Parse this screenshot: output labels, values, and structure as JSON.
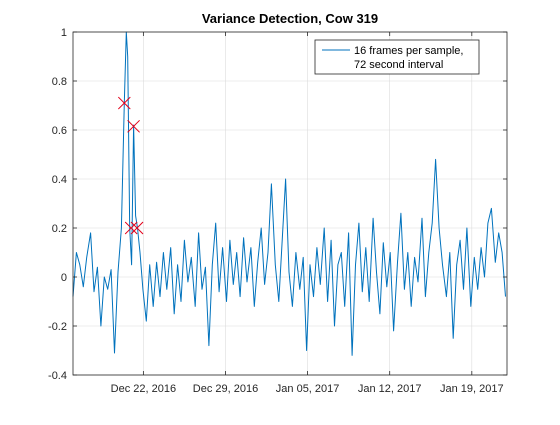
{
  "chart_data": {
    "type": "line",
    "title": "Variance Detection, Cow 319",
    "xlabel": "",
    "ylabel": "",
    "xlim": [
      "2016-12-16",
      "2017-01-22"
    ],
    "ylim": [
      -0.4,
      1
    ],
    "grid": true,
    "legend_position": "top-right",
    "x_ticks": [
      "Dec 22, 2016",
      "Dec 29, 2016",
      "Jan 05, 2017",
      "Jan 12, 2017",
      "Jan 19, 2017"
    ],
    "x_tick_dates": [
      "2016-12-22",
      "2016-12-29",
      "2017-01-05",
      "2017-01-12",
      "2017-01-19"
    ],
    "y_ticks": [
      -0.4,
      -0.2,
      0,
      0.2,
      0.4,
      0.6,
      0.8,
      1
    ],
    "y_tick_labels": [
      "-0.4",
      "-0.2",
      "0",
      "0.2",
      "0.4",
      "0.6",
      "0.8",
      "1"
    ],
    "series": [
      {
        "name": "16 frames per sample,\n72  second interval",
        "legend_lines": [
          "16 frames per sample,",
          "72  second interval"
        ],
        "color": "#0072BD",
        "points": [
          [
            "2016-12-16T00:00",
            -0.08
          ],
          [
            "2016-12-16T07:00",
            0.1
          ],
          [
            "2016-12-16T14:00",
            0.05
          ],
          [
            "2016-12-16T21:00",
            -0.04
          ],
          [
            "2016-12-17T04:00",
            0.08
          ],
          [
            "2016-12-17T12:00",
            0.18
          ],
          [
            "2016-12-17T19:00",
            -0.06
          ],
          [
            "2016-12-18T02:00",
            0.04
          ],
          [
            "2016-12-18T09:00",
            -0.2
          ],
          [
            "2016-12-18T16:00",
            0.0
          ],
          [
            "2016-12-18T23:00",
            -0.05
          ],
          [
            "2016-12-19T06:00",
            0.03
          ],
          [
            "2016-12-19T13:00",
            -0.31
          ],
          [
            "2016-12-19T20:00",
            0.02
          ],
          [
            "2016-12-20T03:00",
            0.2
          ],
          [
            "2016-12-20T09:00",
            0.71
          ],
          [
            "2016-12-20T13:00",
            1.0
          ],
          [
            "2016-12-20T16:00",
            0.9
          ],
          [
            "2016-12-20T20:00",
            0.2
          ],
          [
            "2016-12-21T00:00",
            0.05
          ],
          [
            "2016-12-21T04:00",
            0.62
          ],
          [
            "2016-12-21T08:00",
            0.25
          ],
          [
            "2016-12-21T12:00",
            0.2
          ],
          [
            "2016-12-21T17:00",
            0.1
          ],
          [
            "2016-12-21T23:00",
            -0.05
          ],
          [
            "2016-12-22T06:00",
            -0.18
          ],
          [
            "2016-12-22T13:00",
            0.05
          ],
          [
            "2016-12-22T20:00",
            -0.12
          ],
          [
            "2016-12-23T03:00",
            0.06
          ],
          [
            "2016-12-23T10:00",
            -0.08
          ],
          [
            "2016-12-23T17:00",
            0.1
          ],
          [
            "2016-12-24T00:00",
            -0.05
          ],
          [
            "2016-12-24T08:00",
            0.12
          ],
          [
            "2016-12-24T15:00",
            -0.15
          ],
          [
            "2016-12-24T22:00",
            0.05
          ],
          [
            "2016-12-25T05:00",
            -0.1
          ],
          [
            "2016-12-25T12:00",
            0.15
          ],
          [
            "2016-12-25T19:00",
            -0.02
          ],
          [
            "2016-12-26T02:00",
            0.08
          ],
          [
            "2016-12-26T10:00",
            -0.12
          ],
          [
            "2016-12-26T17:00",
            0.18
          ],
          [
            "2016-12-27T00:00",
            -0.05
          ],
          [
            "2016-12-27T07:00",
            0.04
          ],
          [
            "2016-12-27T14:00",
            -0.28
          ],
          [
            "2016-12-27T21:00",
            0.05
          ],
          [
            "2016-12-28T04:00",
            0.22
          ],
          [
            "2016-12-28T11:00",
            -0.06
          ],
          [
            "2016-12-28T18:00",
            0.12
          ],
          [
            "2016-12-29T02:00",
            -0.1
          ],
          [
            "2016-12-29T09:00",
            0.15
          ],
          [
            "2016-12-29T16:00",
            -0.03
          ],
          [
            "2016-12-29T23:00",
            0.1
          ],
          [
            "2016-12-30T06:00",
            -0.08
          ],
          [
            "2016-12-30T13:00",
            0.16
          ],
          [
            "2016-12-30T20:00",
            -0.02
          ],
          [
            "2016-12-31T04:00",
            0.12
          ],
          [
            "2016-12-31T11:00",
            -0.12
          ],
          [
            "2016-12-31T18:00",
            0.06
          ],
          [
            "2017-01-01T01:00",
            0.2
          ],
          [
            "2017-01-01T08:00",
            -0.03
          ],
          [
            "2017-01-01T15:00",
            0.1
          ],
          [
            "2017-01-01T22:00",
            0.38
          ],
          [
            "2017-01-02T06:00",
            0.05
          ],
          [
            "2017-01-02T13:00",
            -0.1
          ],
          [
            "2017-01-02T20:00",
            0.15
          ],
          [
            "2017-01-03T03:00",
            0.4
          ],
          [
            "2017-01-03T10:00",
            0.02
          ],
          [
            "2017-01-03T17:00",
            -0.12
          ],
          [
            "2017-01-04T00:00",
            0.1
          ],
          [
            "2017-01-04T08:00",
            -0.05
          ],
          [
            "2017-01-04T15:00",
            0.08
          ],
          [
            "2017-01-04T22:00",
            -0.3
          ],
          [
            "2017-01-05T05:00",
            0.05
          ],
          [
            "2017-01-05T12:00",
            -0.08
          ],
          [
            "2017-01-05T19:00",
            0.12
          ],
          [
            "2017-01-06T02:00",
            -0.03
          ],
          [
            "2017-01-06T10:00",
            0.2
          ],
          [
            "2017-01-06T17:00",
            -0.1
          ],
          [
            "2017-01-07T00:00",
            0.15
          ],
          [
            "2017-01-07T07:00",
            -0.2
          ],
          [
            "2017-01-07T14:00",
            0.05
          ],
          [
            "2017-01-07T21:00",
            0.1
          ],
          [
            "2017-01-08T04:00",
            -0.12
          ],
          [
            "2017-01-08T12:00",
            0.18
          ],
          [
            "2017-01-08T19:00",
            -0.32
          ],
          [
            "2017-01-09T02:00",
            0.05
          ],
          [
            "2017-01-09T09:00",
            0.22
          ],
          [
            "2017-01-09T16:00",
            -0.06
          ],
          [
            "2017-01-09T23:00",
            0.12
          ],
          [
            "2017-01-10T06:00",
            -0.1
          ],
          [
            "2017-01-10T14:00",
            0.24
          ],
          [
            "2017-01-10T21:00",
            0.02
          ],
          [
            "2017-01-11T04:00",
            -0.15
          ],
          [
            "2017-01-11T11:00",
            0.14
          ],
          [
            "2017-01-11T18:00",
            -0.04
          ],
          [
            "2017-01-12T01:00",
            0.1
          ],
          [
            "2017-01-12T08:00",
            -0.22
          ],
          [
            "2017-01-12T16:00",
            0.06
          ],
          [
            "2017-01-12T23:00",
            0.26
          ],
          [
            "2017-01-13T06:00",
            -0.05
          ],
          [
            "2017-01-13T13:00",
            0.1
          ],
          [
            "2017-01-13T20:00",
            -0.12
          ],
          [
            "2017-01-14T03:00",
            0.08
          ],
          [
            "2017-01-14T10:00",
            -0.02
          ],
          [
            "2017-01-14T18:00",
            0.24
          ],
          [
            "2017-01-15T01:00",
            -0.08
          ],
          [
            "2017-01-15T08:00",
            0.1
          ],
          [
            "2017-01-15T15:00",
            0.22
          ],
          [
            "2017-01-15T22:00",
            0.48
          ],
          [
            "2017-01-16T05:00",
            0.2
          ],
          [
            "2017-01-16T12:00",
            0.05
          ],
          [
            "2017-01-16T20:00",
            -0.08
          ],
          [
            "2017-01-17T03:00",
            0.1
          ],
          [
            "2017-01-17T10:00",
            -0.25
          ],
          [
            "2017-01-17T17:00",
            0.05
          ],
          [
            "2017-01-18T00:00",
            0.15
          ],
          [
            "2017-01-18T07:00",
            -0.05
          ],
          [
            "2017-01-18T14:00",
            0.2
          ],
          [
            "2017-01-18T22:00",
            -0.12
          ],
          [
            "2017-01-19T05:00",
            0.08
          ],
          [
            "2017-01-19T12:00",
            -0.05
          ],
          [
            "2017-01-19T19:00",
            0.12
          ],
          [
            "2017-01-20T02:00",
            0.0
          ],
          [
            "2017-01-20T09:00",
            0.22
          ],
          [
            "2017-01-20T16:00",
            0.28
          ],
          [
            "2017-01-21T00:00",
            0.06
          ],
          [
            "2017-01-21T07:00",
            0.18
          ],
          [
            "2017-01-21T14:00",
            0.1
          ],
          [
            "2017-01-21T21:00",
            -0.08
          ]
        ]
      }
    ],
    "markers": {
      "symbol": "x",
      "color": "#E2001A",
      "points": [
        [
          "2016-12-20T09:00",
          0.71
        ],
        [
          "2016-12-20T23:00",
          0.2
        ],
        [
          "2016-12-21T04:00",
          0.615
        ],
        [
          "2016-12-21T11:00",
          0.2
        ]
      ]
    }
  }
}
